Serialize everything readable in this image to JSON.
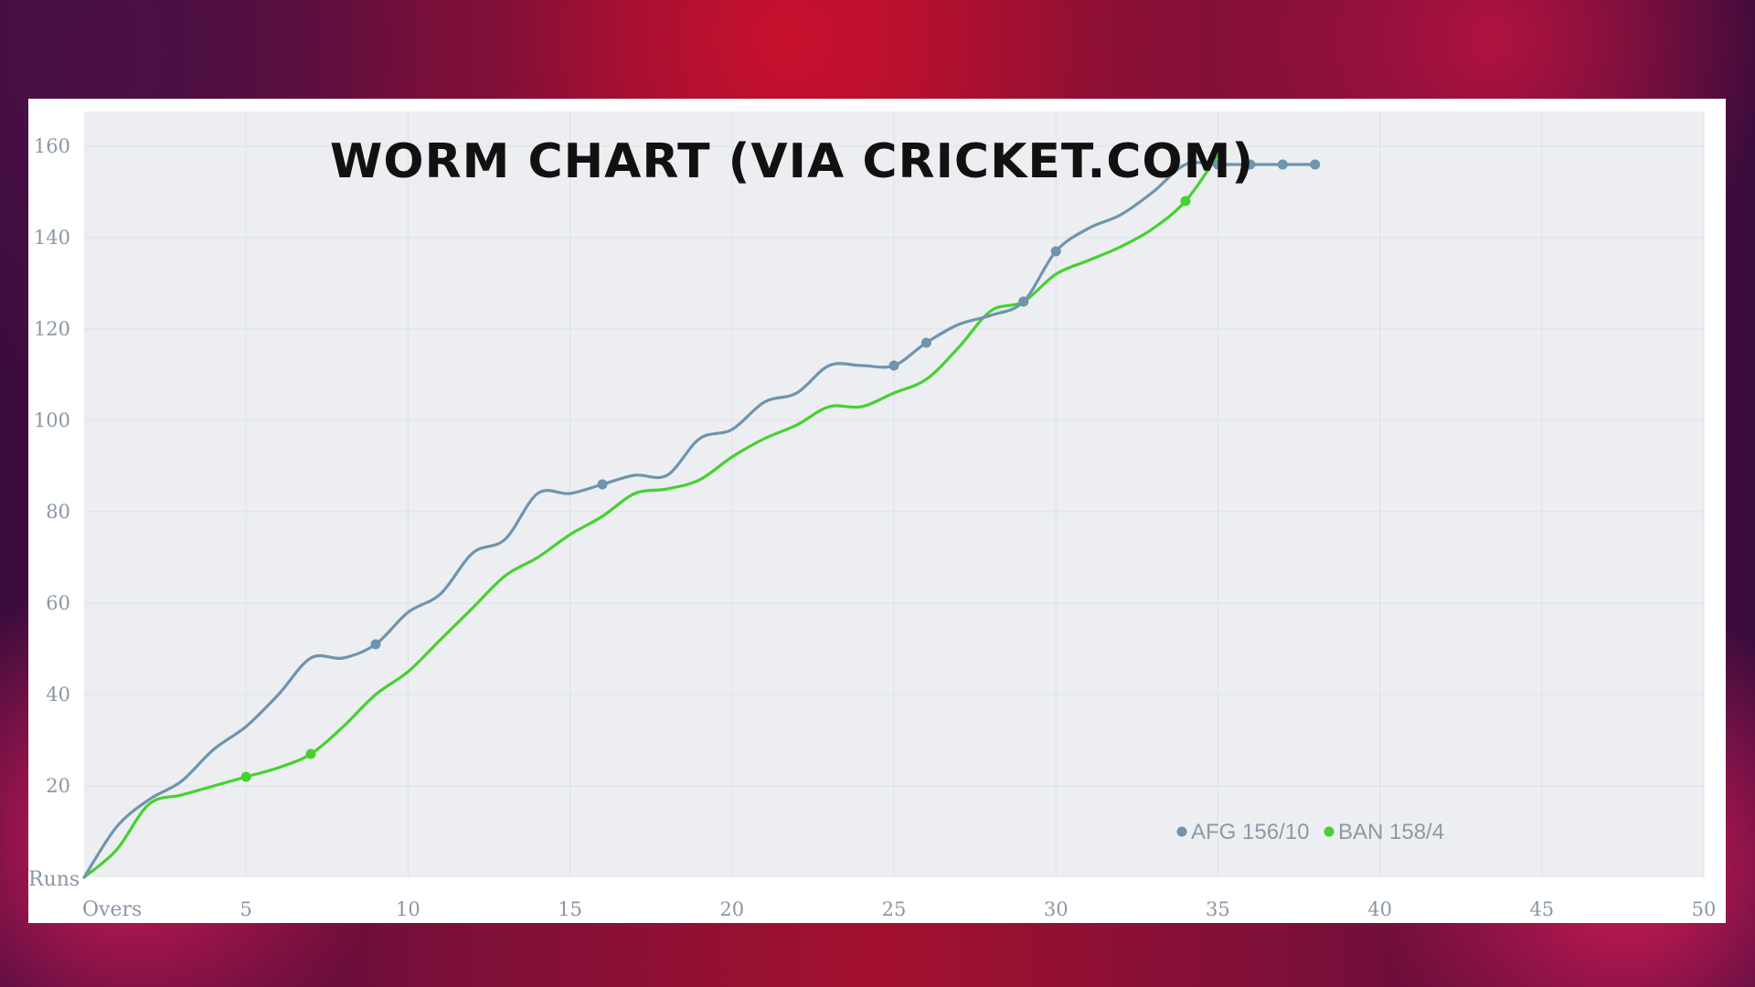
{
  "colors": {
    "afg": "#6f94ad",
    "ban": "#45d12f",
    "plot_bg": "#eceef2",
    "grid": "#dde1e6"
  },
  "chart_data": {
    "type": "line",
    "title": "WORM CHART (VIA CRICKET.COM)",
    "xlabel": "Overs",
    "ylabel": "Runs",
    "xlim": [
      0,
      50
    ],
    "ylim": [
      0,
      160
    ],
    "x_ticks": [
      5,
      10,
      15,
      20,
      25,
      30,
      35,
      40,
      45,
      50
    ],
    "y_ticks": [
      20,
      40,
      60,
      80,
      100,
      120,
      140,
      160
    ],
    "grid": true,
    "legend_position": "bottom-right",
    "series": [
      {
        "name": "AFG 156/10",
        "color": "#6f94ad",
        "x": [
          0,
          1,
          2,
          3,
          4,
          5,
          6,
          7,
          8,
          9,
          10,
          11,
          12,
          13,
          14,
          15,
          16,
          17,
          18,
          19,
          20,
          21,
          22,
          23,
          24,
          25,
          26,
          27,
          28,
          29,
          30,
          31,
          32,
          33,
          34,
          35,
          36,
          37,
          38
        ],
        "y": [
          0,
          11,
          17,
          21,
          28,
          33,
          40,
          48,
          48,
          51,
          58,
          62,
          71,
          74,
          84,
          84,
          86,
          88,
          88,
          96,
          98,
          104,
          106,
          112,
          112,
          112,
          117,
          121,
          123,
          126,
          137,
          142,
          145,
          150,
          156,
          156,
          156,
          156,
          156
        ],
        "wickets_at_over": [
          9,
          16,
          25,
          26,
          29,
          30,
          35,
          36,
          37,
          38
        ]
      },
      {
        "name": "BAN 158/4",
        "color": "#45d12f",
        "x": [
          0,
          1,
          2,
          3,
          4,
          5,
          6,
          7,
          8,
          9,
          10,
          11,
          12,
          13,
          14,
          15,
          16,
          17,
          18,
          19,
          20,
          21,
          22,
          23,
          24,
          25,
          26,
          27,
          28,
          29,
          30,
          31,
          32,
          33,
          34,
          35
        ],
        "y": [
          0,
          6,
          16,
          18,
          20,
          22,
          24,
          27,
          33,
          40,
          45,
          52,
          59,
          66,
          70,
          75,
          79,
          84,
          85,
          87,
          92,
          96,
          99,
          103,
          103,
          106,
          109,
          116,
          124,
          126,
          132,
          135,
          138,
          142,
          148,
          158
        ],
        "wickets_at_over": [
          5,
          7,
          29,
          34
        ]
      }
    ]
  }
}
